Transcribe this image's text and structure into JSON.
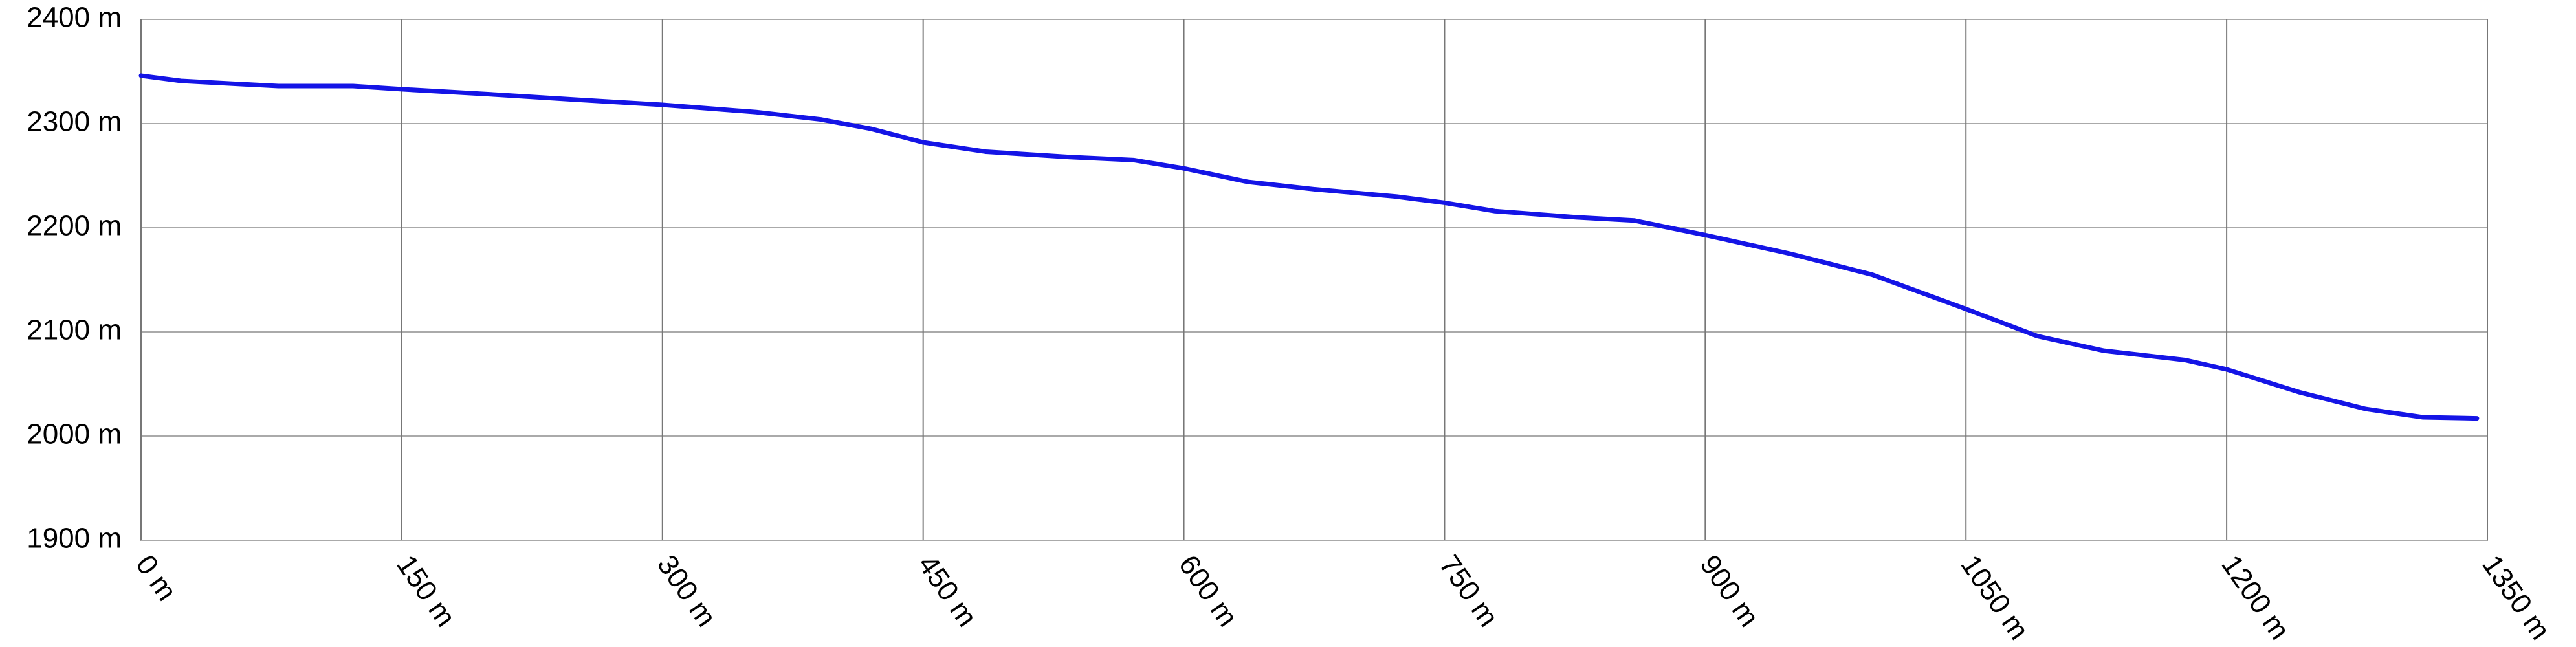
{
  "chart_data": {
    "type": "line",
    "x": [
      0,
      23,
      79,
      122,
      150,
      202,
      250,
      300,
      354,
      391,
      420,
      450,
      486,
      533,
      571,
      600,
      637,
      675,
      722,
      750,
      779,
      826,
      859,
      900,
      949,
      996,
      1050,
      1091,
      1129,
      1176,
      1200,
      1242,
      1280,
      1313,
      1344
    ],
    "series": [
      {
        "color": "#1414e6",
        "values": [
          2346,
          2341,
          2336,
          2336,
          2333,
          2328,
          2323,
          2318,
          2311,
          2304,
          2295,
          2282,
          2273,
          2268,
          2265,
          2257,
          2244,
          2237,
          2230,
          2224,
          2216,
          2210,
          2207,
          2193,
          2175,
          2155,
          2122,
          2096,
          2082,
          2073,
          2064,
          2042,
          2026,
          2018,
          2017
        ]
      }
    ],
    "xlim": [
      0,
      1350
    ],
    "xticks": [
      {
        "value": 0,
        "label": "0 m"
      },
      {
        "value": 150,
        "label": "150 m"
      },
      {
        "value": 300,
        "label": "300 m"
      },
      {
        "value": 450,
        "label": "450 m"
      },
      {
        "value": 600,
        "label": "600 m"
      },
      {
        "value": 750,
        "label": "750 m"
      },
      {
        "value": 900,
        "label": "900 m"
      },
      {
        "value": 1050,
        "label": "1050 m"
      },
      {
        "value": 1200,
        "label": "1200 m"
      },
      {
        "value": 1350,
        "label": "1350 m"
      }
    ],
    "ylim": [
      1900,
      2400
    ],
    "yticks": [
      {
        "value": 1900,
        "label": "1900 m"
      },
      {
        "value": 2000,
        "label": "2000 m"
      },
      {
        "value": 2100,
        "label": "2100 m"
      },
      {
        "value": 2200,
        "label": "2200 m"
      },
      {
        "value": 2300,
        "label": "2300 m"
      },
      {
        "value": 2400,
        "label": "2400 m"
      }
    ],
    "grid": true
  }
}
